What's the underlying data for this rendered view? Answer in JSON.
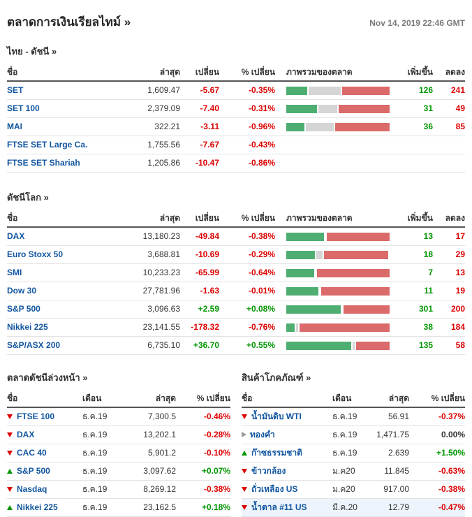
{
  "header": {
    "title": "ตลาดการเงินเรียลไทม์ »",
    "timestamp": "Nov 14, 2019 22:46 GMT"
  },
  "colors": {
    "positive": "#009600",
    "negative": "#dc0000",
    "neutral": "#999999",
    "link": "#1256a0",
    "bar_advancing": "#4eae71",
    "bar_unchanged": "#d5d5d5",
    "bar_declining": "#db6a6a",
    "highlight_row": "#edf4fb"
  },
  "tables": {
    "thai": {
      "title": "ไทย - ดัชนี »",
      "columns": {
        "name": "ชื่อ",
        "last": "ล่าสุด",
        "change": "เปลี่ยน",
        "pct": "% เปลี่ยน",
        "breadth": "ภาพรวมของตลาด",
        "adv": "เพิ่มขึ้น",
        "dec": "ลดลง"
      },
      "rows": [
        {
          "name": "SET",
          "last": "1,609.47",
          "change": "-5.67",
          "pct": "-0.35%",
          "trend": "down",
          "breadth": {
            "adv": 21,
            "unch": 32,
            "dec": 47
          },
          "advancers": "126",
          "decliners": "241"
        },
        {
          "name": "SET 100",
          "last": "2,379.09",
          "change": "-7.40",
          "pct": "-0.31%",
          "trend": "down",
          "breadth": {
            "adv": 30,
            "unch": 18,
            "dec": 50
          },
          "advancers": "31",
          "decliners": "49"
        },
        {
          "name": "MAI",
          "last": "322.21",
          "change": "-3.11",
          "pct": "-0.96%",
          "trend": "down",
          "breadth": {
            "adv": 18,
            "unch": 27,
            "dec": 53
          },
          "advancers": "36",
          "decliners": "85"
        },
        {
          "name": "FTSE SET Large Ca.",
          "last": "1,755.56",
          "change": "-7.67",
          "pct": "-0.43%",
          "trend": "down"
        },
        {
          "name": "FTSE SET Shariah",
          "last": "1,205.86",
          "change": "-10.47",
          "pct": "-0.86%",
          "trend": "down"
        }
      ]
    },
    "world": {
      "title": "ดัชนีโลก »",
      "columns": {
        "name": "ชื่อ",
        "last": "ล่าสุด",
        "change": "เปลี่ยน",
        "pct": "% เปลี่ยน",
        "breadth": "ภาพรวมของตลาด",
        "adv": "เพิ่มขึ้น",
        "dec": "ลดลง"
      },
      "rows": [
        {
          "name": "DAX",
          "last": "13,180.23",
          "change": "-49.84",
          "pct": "-0.38%",
          "trend": "down",
          "breadth": {
            "adv": 37,
            "unch": 0,
            "dec": 61
          },
          "advancers": "13",
          "decliners": "17"
        },
        {
          "name": "Euro Stoxx 50",
          "last": "3,688.81",
          "change": "-10.69",
          "pct": "-0.29%",
          "trend": "down",
          "breadth": {
            "adv": 28,
            "unch": 6,
            "dec": 62
          },
          "advancers": "18",
          "decliners": "29"
        },
        {
          "name": "SMI",
          "last": "10,233.23",
          "change": "-65.99",
          "pct": "-0.64%",
          "trend": "down",
          "breadth": {
            "adv": 27,
            "unch": 0,
            "dec": 70
          },
          "advancers": "7",
          "decliners": "13"
        },
        {
          "name": "Dow 30",
          "last": "27,781.96",
          "change": "-1.63",
          "pct": "-0.01%",
          "trend": "down",
          "breadth": {
            "adv": 31,
            "unch": 0,
            "dec": 67
          },
          "advancers": "11",
          "decliners": "19"
        },
        {
          "name": "S&P 500",
          "last": "3,096.63",
          "change": "+2.59",
          "pct": "+0.08%",
          "trend": "up",
          "breadth": {
            "adv": 53,
            "unch": 0,
            "dec": 45
          },
          "advancers": "301",
          "decliners": "200"
        },
        {
          "name": "Nikkei 225",
          "last": "23,141.55",
          "change": "-178.32",
          "pct": "-0.76%",
          "trend": "down",
          "breadth": {
            "adv": 8,
            "unch": 2,
            "dec": 88
          },
          "advancers": "38",
          "decliners": "184"
        },
        {
          "name": "S&P/ASX 200",
          "last": "6,735.10",
          "change": "+36.70",
          "pct": "+0.55%",
          "trend": "up",
          "breadth": {
            "adv": 63,
            "unch": 2,
            "dec": 32
          },
          "advancers": "135",
          "decliners": "58"
        }
      ]
    },
    "futures": {
      "title": "ตลาดดัชนีล่วงหน้า »",
      "columns": {
        "name": "ชื่อ",
        "month": "เดือน",
        "last": "ล่าสุด",
        "pct": "% เปลี่ยน"
      },
      "rows": [
        {
          "name": "FTSE 100",
          "month": "ธ.ค.19",
          "last": "7,300.5",
          "pct": "-0.46%",
          "trend": "down"
        },
        {
          "name": "DAX",
          "month": "ธ.ค.19",
          "last": "13,202.1",
          "pct": "-0.28%",
          "trend": "down"
        },
        {
          "name": "CAC 40",
          "month": "ธ.ค.19",
          "last": "5,901.2",
          "pct": "-0.10%",
          "trend": "down"
        },
        {
          "name": "S&P 500",
          "month": "ธ.ค.19",
          "last": "3,097.62",
          "pct": "+0.07%",
          "trend": "up"
        },
        {
          "name": "Nasdaq",
          "month": "ธ.ค.19",
          "last": "8,269.12",
          "pct": "-0.38%",
          "trend": "down"
        },
        {
          "name": "Nikkei 225",
          "month": "ธ.ค.19",
          "last": "23,162.5",
          "pct": "+0.18%",
          "trend": "up"
        }
      ]
    },
    "commodities": {
      "title": "สินค้าโภคภัณฑ์ »",
      "columns": {
        "name": "ชื่อ",
        "month": "เดือน",
        "last": "ล่าสุด",
        "pct": "% เปลี่ยน"
      },
      "rows": [
        {
          "name": "น้ำมันดิบ WTI",
          "month": "ธ.ค.19",
          "last": "56.91",
          "pct": "-0.37%",
          "trend": "down"
        },
        {
          "name": "ทองคำ",
          "month": "ธ.ค.19",
          "last": "1,471.75",
          "pct": "0.00%",
          "trend": "flat"
        },
        {
          "name": "ก๊าซธรรมชาติ",
          "month": "ธ.ค.19",
          "last": "2.639",
          "pct": "+1.50%",
          "trend": "up"
        },
        {
          "name": "ข้าวกล้อง",
          "month": "ม.ค20",
          "last": "11.845",
          "pct": "-0.63%",
          "trend": "down"
        },
        {
          "name": "ถั่วเหลือง US",
          "month": "ม.ค20",
          "last": "917.00",
          "pct": "-0.38%",
          "trend": "down"
        },
        {
          "name": "น้ำตาล #11 US",
          "month": "มี.ค.20",
          "last": "12.79",
          "pct": "-0.47%",
          "trend": "down",
          "highlighted": true
        }
      ]
    }
  }
}
